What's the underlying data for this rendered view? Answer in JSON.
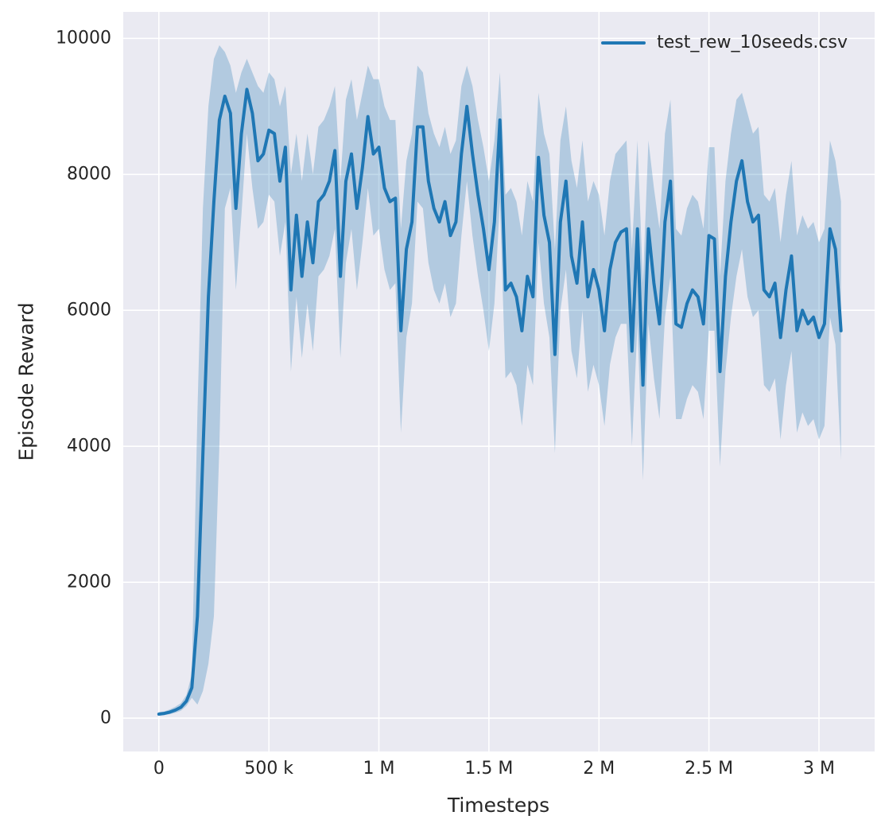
{
  "figure": {
    "background": "#ffffff",
    "plot_background": "#eaeaf2",
    "grid_color": "#ffffff",
    "text_color": "#262626"
  },
  "chart_data": {
    "type": "line",
    "title": "",
    "xlabel": "Timesteps",
    "ylabel": "Episode Reward",
    "x_unit": "timesteps_thousands",
    "xlim": [
      -162,
      3253
    ],
    "ylim": [
      -490,
      10390
    ],
    "grid": true,
    "legend_position": "upper right",
    "x_ticks": [
      {
        "value": 0,
        "label": "0"
      },
      {
        "value": 500,
        "label": "500 k"
      },
      {
        "value": 1000,
        "label": "1 M"
      },
      {
        "value": 1500,
        "label": "1.5 M"
      },
      {
        "value": 2000,
        "label": "2 M"
      },
      {
        "value": 2500,
        "label": "2.5 M"
      },
      {
        "value": 3000,
        "label": "3 M"
      }
    ],
    "y_ticks": [
      {
        "value": 0,
        "label": "0"
      },
      {
        "value": 2000,
        "label": "2000"
      },
      {
        "value": 4000,
        "label": "4000"
      },
      {
        "value": 6000,
        "label": "6000"
      },
      {
        "value": 8000,
        "label": "8000"
      },
      {
        "value": 10000,
        "label": "10000"
      }
    ],
    "series": [
      {
        "name": "test_rew_10seeds.csv",
        "color": "#1f77b4",
        "band_opacity": 0.28,
        "x": [
          0,
          25,
          50,
          75,
          100,
          125,
          150,
          175,
          200,
          225,
          250,
          275,
          300,
          325,
          350,
          375,
          400,
          425,
          450,
          475,
          500,
          525,
          550,
          575,
          600,
          625,
          650,
          675,
          700,
          725,
          750,
          775,
          800,
          825,
          850,
          875,
          900,
          925,
          950,
          975,
          1000,
          1025,
          1050,
          1075,
          1100,
          1125,
          1150,
          1175,
          1200,
          1225,
          1250,
          1275,
          1300,
          1325,
          1350,
          1375,
          1400,
          1425,
          1450,
          1475,
          1500,
          1525,
          1550,
          1575,
          1600,
          1625,
          1650,
          1675,
          1700,
          1725,
          1750,
          1775,
          1800,
          1825,
          1850,
          1875,
          1900,
          1925,
          1950,
          1975,
          2000,
          2025,
          2050,
          2075,
          2100,
          2125,
          2150,
          2175,
          2200,
          2225,
          2250,
          2275,
          2300,
          2325,
          2350,
          2375,
          2400,
          2425,
          2450,
          2475,
          2500,
          2525,
          2550,
          2575,
          2600,
          2625,
          2650,
          2675,
          2700,
          2725,
          2750,
          2775,
          2800,
          2825,
          2850,
          2875,
          2900,
          2925,
          2950,
          2975,
          3000,
          3025,
          3050,
          3075,
          3100
        ],
        "mean": [
          60,
          70,
          90,
          120,
          160,
          250,
          450,
          1500,
          3900,
          6200,
          7600,
          8800,
          9150,
          8900,
          7500,
          8600,
          9250,
          8900,
          8200,
          8300,
          8650,
          8600,
          7900,
          8400,
          6300,
          7400,
          6500,
          7300,
          6700,
          7600,
          7700,
          7900,
          8350,
          6500,
          7900,
          8300,
          7500,
          8100,
          8850,
          8300,
          8400,
          7800,
          7600,
          7650,
          5700,
          6900,
          7300,
          8700,
          8700,
          7900,
          7500,
          7300,
          7600,
          7100,
          7300,
          8300,
          9000,
          8300,
          7700,
          7200,
          6600,
          7300,
          8800,
          6300,
          6400,
          6200,
          5700,
          6500,
          6200,
          8250,
          7400,
          7000,
          5350,
          7300,
          7900,
          6800,
          6400,
          7300,
          6200,
          6600,
          6300,
          5700,
          6600,
          7000,
          7150,
          7200,
          5400,
          7200,
          4900,
          7200,
          6400,
          5800,
          7300,
          7900,
          5800,
          5750,
          6100,
          6300,
          6200,
          5800,
          7100,
          7050,
          5100,
          6500,
          7300,
          7900,
          8200,
          7600,
          7300,
          7400,
          6300,
          6200,
          6400,
          5600,
          6300,
          6800,
          5700,
          6000,
          5800,
          5900,
          5600,
          5800,
          7200,
          6900,
          5700
        ],
        "band_lower": [
          40,
          45,
          60,
          80,
          110,
          180,
          300,
          200,
          400,
          800,
          1500,
          4000,
          7500,
          7800,
          6300,
          7400,
          8600,
          7800,
          7200,
          7300,
          7700,
          7600,
          6800,
          7300,
          5100,
          6200,
          5300,
          6100,
          5400,
          6500,
          6600,
          6800,
          7200,
          5300,
          6700,
          7200,
          6300,
          7000,
          7800,
          7100,
          7200,
          6600,
          6300,
          6400,
          4200,
          5600,
          6100,
          7600,
          7500,
          6700,
          6300,
          6100,
          6400,
          5900,
          6100,
          7100,
          7900,
          7100,
          6500,
          6000,
          5400,
          6100,
          7600,
          5000,
          5100,
          4900,
          4300,
          5200,
          4900,
          7000,
          6100,
          5600,
          3900,
          6000,
          6600,
          5400,
          5000,
          6000,
          4800,
          5200,
          4900,
          4300,
          5200,
          5600,
          5800,
          5800,
          4000,
          5800,
          3500,
          5800,
          5000,
          4400,
          5900,
          6500,
          4400,
          4400,
          4700,
          4900,
          4800,
          4400,
          5700,
          5700,
          3700,
          5100,
          5900,
          6500,
          6900,
          6200,
          5900,
          6000,
          4900,
          4800,
          5000,
          4100,
          4900,
          5400,
          4200,
          4500,
          4300,
          4400,
          4100,
          4300,
          5900,
          5500,
          3800
        ],
        "band_upper": [
          90,
          100,
          130,
          170,
          220,
          340,
          650,
          4500,
          7500,
          9000,
          9700,
          9900,
          9800,
          9600,
          9200,
          9500,
          9700,
          9500,
          9300,
          9200,
          9500,
          9400,
          9000,
          9300,
          8000,
          8600,
          7900,
          8600,
          8000,
          8700,
          8800,
          9000,
          9300,
          7900,
          9100,
          9400,
          8800,
          9200,
          9600,
          9400,
          9400,
          9000,
          8800,
          8800,
          7200,
          8200,
          8600,
          9600,
          9500,
          8900,
          8600,
          8400,
          8700,
          8300,
          8500,
          9300,
          9600,
          9300,
          8800,
          8400,
          7900,
          8500,
          9500,
          7700,
          7800,
          7600,
          7100,
          7900,
          7600,
          9200,
          8600,
          8300,
          6900,
          8500,
          9000,
          8200,
          7800,
          8500,
          7600,
          7900,
          7700,
          7100,
          7900,
          8300,
          8400,
          8500,
          6900,
          8500,
          6400,
          8500,
          7800,
          7200,
          8600,
          9100,
          7200,
          7100,
          7500,
          7700,
          7600,
          7200,
          8400,
          8400,
          6500,
          7900,
          8600,
          9100,
          9200,
          8900,
          8600,
          8700,
          7700,
          7600,
          7800,
          7000,
          7700,
          8200,
          7100,
          7400,
          7200,
          7300,
          7000,
          7200,
          8500,
          8200,
          7600
        ]
      }
    ]
  }
}
